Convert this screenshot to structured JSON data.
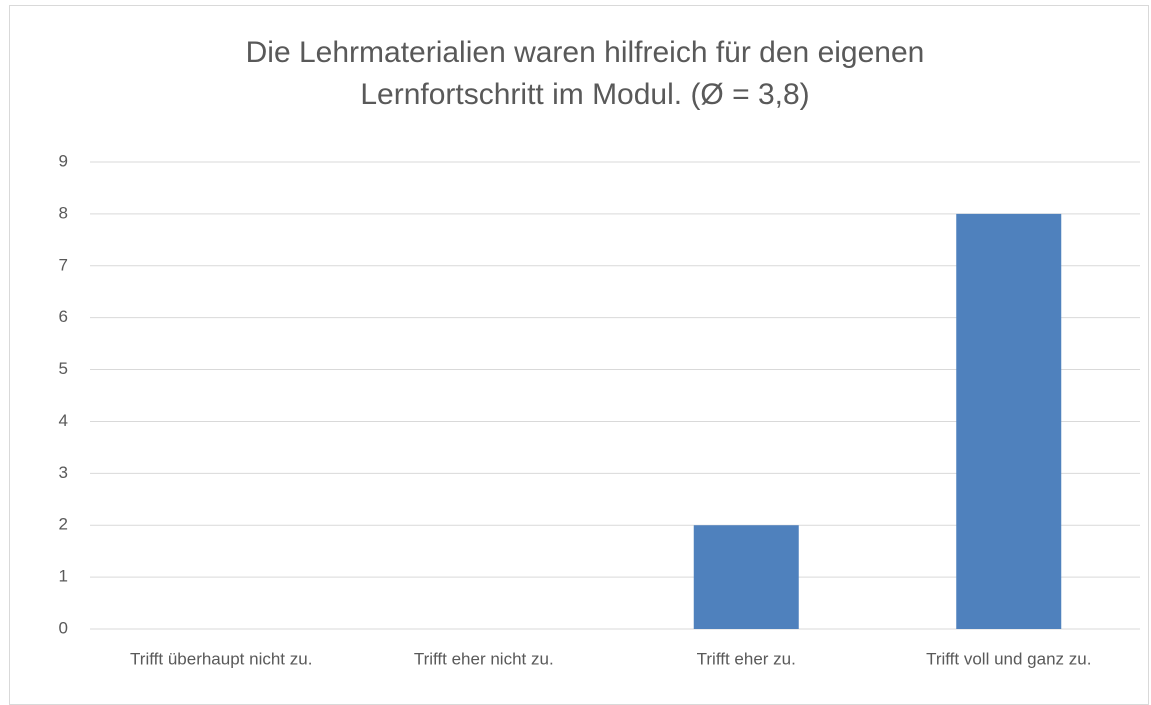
{
  "chart_data": {
    "type": "bar",
    "title": "Die Lehrmaterialien waren hilfreich für den eigenen Lernfortschritt im Modul. (Ø = 3,8)",
    "categories": [
      "Trifft überhaupt nicht zu.",
      "Trifft eher nicht zu.",
      "Trifft eher zu.",
      "Trifft voll und ganz zu."
    ],
    "values": [
      0,
      0,
      2,
      8
    ],
    "color": "#4f81bd",
    "ylim": [
      0,
      9
    ],
    "yticks": [
      0,
      1,
      2,
      3,
      4,
      5,
      6,
      7,
      8,
      9
    ],
    "grid": true
  }
}
